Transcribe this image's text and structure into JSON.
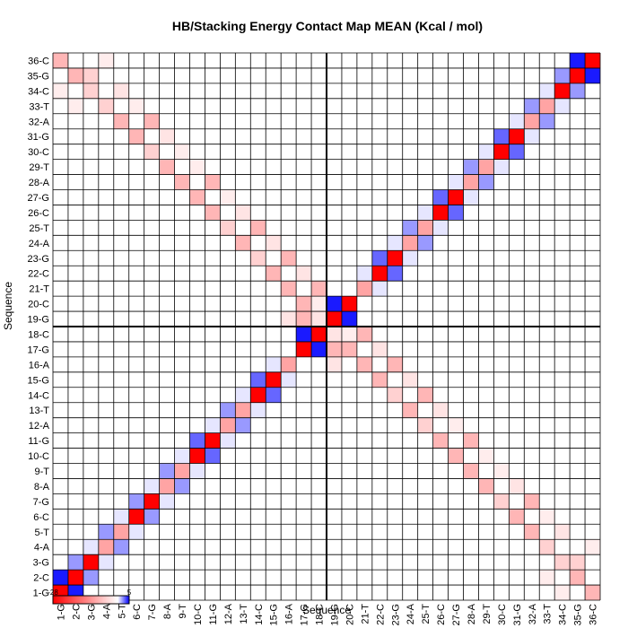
{
  "chart_data": {
    "type": "heatmap",
    "title": "HB/Stacking Energy Contact Map MEAN (Kcal / mol)",
    "xlabel": "Sequence",
    "ylabel": "Sequence",
    "labels": [
      "1-G",
      "2-C",
      "3-G",
      "4-A",
      "5-T",
      "6-C",
      "7-G",
      "8-A",
      "9-T",
      "10-C",
      "11-G",
      "12-A",
      "13-T",
      "14-C",
      "15-G",
      "16-A",
      "17-G",
      "18-C",
      "19-G",
      "20-C",
      "21-T",
      "22-C",
      "23-G",
      "24-A",
      "25-T",
      "26-C",
      "27-G",
      "28-A",
      "29-T",
      "30-C",
      "31-G",
      "32-A",
      "33-T",
      "34-C",
      "35-G",
      "36-C"
    ],
    "colorbar": {
      "min_label": "-28",
      "max_label": "5",
      "range": [
        -28,
        5
      ],
      "colors": {
        "low": "#ff0000",
        "mid": "#ffffff",
        "high": "#0000ff"
      }
    },
    "reference_lines_after_index": 18,
    "grid": true,
    "values": [
      [
        -28,
        4.5,
        0,
        0,
        0,
        0,
        0,
        0,
        0,
        0,
        0,
        0,
        0,
        0,
        0,
        0,
        0,
        0,
        0,
        0,
        0,
        0,
        0,
        0,
        0,
        0,
        0,
        0,
        0,
        0,
        0,
        0,
        0,
        0,
        0,
        0
      ],
      [
        4.5,
        -28,
        2,
        0,
        0,
        0,
        0,
        0,
        0,
        0,
        0,
        0,
        0,
        0,
        0,
        0,
        0,
        0,
        0,
        0,
        0,
        0,
        0,
        0,
        0,
        0,
        0,
        0,
        0,
        0,
        0,
        0,
        0,
        0,
        0,
        0
      ],
      [
        0,
        2,
        -28,
        0.5,
        0,
        0,
        0,
        0,
        0,
        0,
        0,
        0,
        0,
        0,
        0,
        0,
        0,
        0,
        0,
        0,
        0,
        0,
        0,
        0,
        0,
        0,
        0,
        0,
        0,
        0,
        0,
        0,
        0,
        0,
        0,
        0
      ],
      [
        0,
        0,
        0.5,
        -10,
        2,
        0,
        0,
        0,
        0,
        0,
        0,
        0,
        0,
        0,
        0,
        0,
        0,
        0,
        0,
        0,
        0,
        0,
        0,
        0,
        0,
        0,
        0,
        0,
        0,
        0,
        0,
        0,
        0,
        0,
        0,
        0
      ],
      [
        0,
        0,
        0,
        2,
        -10,
        0.5,
        0,
        0,
        0,
        0,
        0,
        0,
        0,
        0,
        0,
        0,
        0,
        0,
        0,
        0,
        0,
        0,
        0,
        0,
        0,
        0,
        0,
        0,
        0,
        0,
        0,
        0,
        0,
        0,
        0,
        0
      ],
      [
        0,
        0,
        0,
        0,
        0.5,
        -28,
        2,
        0,
        0,
        0,
        0,
        0,
        0,
        0,
        0,
        0,
        0,
        0,
        0,
        0,
        0,
        0,
        0,
        0,
        0,
        0,
        0,
        0,
        0,
        0,
        0,
        0,
        0,
        0,
        0,
        0
      ],
      [
        0,
        0,
        0,
        0,
        0,
        2,
        -28,
        0.5,
        0,
        0,
        0,
        0,
        0,
        0,
        0,
        0,
        0,
        0,
        0,
        0,
        0,
        0,
        0,
        0,
        0,
        0,
        0,
        0,
        0,
        0,
        0,
        0,
        0,
        0,
        0,
        0
      ],
      [
        0,
        0,
        0,
        0,
        0,
        0,
        0.5,
        -10,
        2,
        0,
        0,
        0,
        0,
        0,
        0,
        0,
        0,
        0,
        0,
        0,
        0,
        0,
        0,
        0,
        0,
        0,
        0,
        0,
        0,
        0,
        0,
        0,
        0,
        0,
        0,
        0
      ],
      [
        0,
        0,
        0,
        0,
        0,
        0,
        0,
        2,
        -10,
        0.5,
        0,
        0,
        0,
        0,
        0,
        0,
        0,
        0,
        0,
        0,
        0,
        0,
        0,
        0,
        0,
        0,
        0,
        0,
        0,
        0,
        0,
        0,
        0,
        0,
        0,
        0
      ],
      [
        0,
        0,
        0,
        0,
        0,
        0,
        0,
        0,
        0.5,
        -28,
        3,
        0,
        0,
        0,
        0,
        0,
        0,
        0,
        0,
        0,
        0,
        0,
        0,
        0,
        0,
        0,
        0,
        0,
        0,
        0,
        0,
        0,
        0,
        0,
        0,
        0
      ],
      [
        0,
        0,
        0,
        0,
        0,
        0,
        0,
        0,
        0,
        3,
        -28,
        0.5,
        0,
        0,
        0,
        0,
        0,
        0,
        0,
        0,
        0,
        0,
        0,
        0,
        0,
        0,
        0,
        0,
        0,
        0,
        0,
        0,
        0,
        0,
        0,
        0
      ],
      [
        0,
        0,
        0,
        0,
        0,
        0,
        0,
        0,
        0,
        0,
        0.5,
        -10,
        2,
        0,
        0,
        0,
        0,
        0,
        0,
        0,
        0,
        0,
        0,
        0,
        0,
        0,
        0,
        0,
        0,
        0,
        0,
        0,
        0,
        0,
        0,
        0
      ],
      [
        0,
        0,
        0,
        0,
        0,
        0,
        0,
        0,
        0,
        0,
        0,
        2,
        -10,
        0.5,
        0,
        0,
        0,
        0,
        0,
        0,
        0,
        0,
        0,
        0,
        0,
        0,
        0,
        0,
        0,
        0,
        0,
        0,
        0,
        0,
        0,
        0
      ],
      [
        0,
        0,
        0,
        0,
        0,
        0,
        0,
        0,
        0,
        0,
        0,
        0,
        0.5,
        -28,
        3,
        0,
        0,
        0,
        0,
        0,
        0,
        0,
        0,
        0,
        0,
        0,
        0,
        0,
        0,
        0,
        0,
        0,
        0,
        0,
        0,
        0
      ],
      [
        0,
        0,
        0,
        0,
        0,
        0,
        0,
        0,
        0,
        0,
        0,
        0,
        0,
        3,
        -28,
        0.5,
        0,
        0,
        0,
        0,
        0,
        0,
        0,
        0,
        0,
        0,
        0,
        0,
        0,
        0,
        0,
        0,
        0,
        0,
        0,
        0
      ],
      [
        0,
        0,
        0,
        0,
        0,
        0,
        0,
        0,
        0,
        0,
        0,
        0,
        0,
        0,
        0.5,
        -10,
        0,
        0,
        0,
        0,
        0,
        0,
        0,
        0,
        0,
        0,
        0,
        0,
        0,
        0,
        0,
        0,
        0,
        0,
        0,
        0
      ],
      [
        0,
        0,
        0,
        0,
        0,
        0,
        0,
        0,
        0,
        0,
        0,
        0,
        0,
        0,
        0,
        0,
        -28,
        4.5,
        0,
        0,
        0,
        0,
        0,
        0,
        0,
        0,
        0,
        0,
        0,
        0,
        0,
        0,
        0,
        0,
        0,
        0
      ],
      [
        0,
        0,
        0,
        0,
        0,
        0,
        0,
        0,
        0,
        0,
        0,
        0,
        0,
        0,
        0,
        0,
        4.5,
        -28,
        0,
        0,
        0,
        0,
        0,
        0,
        0,
        0,
        0,
        0,
        0,
        0,
        0,
        0,
        0,
        0,
        0,
        0
      ],
      [
        0,
        0,
        0,
        0,
        0,
        0,
        0,
        0,
        0,
        0,
        0,
        0,
        0,
        0,
        0,
        0,
        0,
        0,
        -28,
        4.5,
        0,
        0,
        0,
        0,
        0,
        0,
        0,
        0,
        0,
        0,
        0,
        0,
        0,
        0,
        0,
        0
      ],
      [
        0,
        0,
        0,
        0,
        0,
        0,
        0,
        0,
        0,
        0,
        0,
        0,
        0,
        0,
        0,
        0,
        0,
        0,
        4.5,
        -28,
        0,
        0,
        0,
        0,
        0,
        0,
        0,
        0,
        0,
        0,
        0,
        0,
        0,
        0,
        0,
        0
      ],
      [
        0,
        0,
        0,
        0,
        0,
        0,
        0,
        0,
        0,
        0,
        0,
        0,
        0,
        0,
        0,
        0,
        0,
        0,
        0,
        0,
        -10,
        0.5,
        0,
        0,
        0,
        0,
        0,
        0,
        0,
        0,
        0,
        0,
        0,
        0,
        0,
        0
      ],
      [
        0,
        0,
        0,
        0,
        0,
        0,
        0,
        0,
        0,
        0,
        0,
        0,
        0,
        0,
        0,
        0,
        0,
        0,
        0,
        0,
        0.5,
        -28,
        3,
        0,
        0,
        0,
        0,
        0,
        0,
        0,
        0,
        0,
        0,
        0,
        0,
        0
      ],
      [
        0,
        0,
        0,
        0,
        0,
        0,
        0,
        0,
        0,
        0,
        0,
        0,
        0,
        0,
        0,
        0,
        0,
        0,
        0,
        0,
        0,
        3,
        -28,
        0.5,
        0,
        0,
        0,
        0,
        0,
        0,
        0,
        0,
        0,
        0,
        0,
        0
      ],
      [
        0,
        0,
        0,
        0,
        0,
        0,
        0,
        0,
        0,
        0,
        0,
        0,
        0,
        0,
        0,
        0,
        0,
        0,
        0,
        0,
        0,
        0,
        0.5,
        -10,
        2,
        0,
        0,
        0,
        0,
        0,
        0,
        0,
        0,
        0,
        0,
        0
      ],
      [
        0,
        0,
        0,
        0,
        0,
        0,
        0,
        0,
        0,
        0,
        0,
        0,
        0,
        0,
        0,
        0,
        0,
        0,
        0,
        0,
        0,
        0,
        0,
        2,
        -10,
        0.5,
        0,
        0,
        0,
        0,
        0,
        0,
        0,
        0,
        0,
        0
      ],
      [
        0,
        0,
        0,
        0,
        0,
        0,
        0,
        0,
        0,
        0,
        0,
        0,
        0,
        0,
        0,
        0,
        0,
        0,
        0,
        0,
        0,
        0,
        0,
        0,
        0.5,
        -28,
        3,
        0,
        0,
        0,
        0,
        0,
        0,
        0,
        0,
        0
      ],
      [
        0,
        0,
        0,
        0,
        0,
        0,
        0,
        0,
        0,
        0,
        0,
        0,
        0,
        0,
        0,
        0,
        0,
        0,
        0,
        0,
        0,
        0,
        0,
        0,
        0,
        3,
        -28,
        0.5,
        0,
        0,
        0,
        0,
        0,
        0,
        0,
        0
      ],
      [
        0,
        0,
        0,
        0,
        0,
        0,
        0,
        0,
        0,
        0,
        0,
        0,
        0,
        0,
        0,
        0,
        0,
        0,
        0,
        0,
        0,
        0,
        0,
        0,
        0,
        0,
        0.5,
        -10,
        2,
        0,
        0,
        0,
        0,
        0,
        0,
        0
      ],
      [
        0,
        0,
        0,
        0,
        0,
        0,
        0,
        0,
        0,
        0,
        0,
        0,
        0,
        0,
        0,
        0,
        0,
        0,
        0,
        0,
        0,
        0,
        0,
        0,
        0,
        0,
        0,
        2,
        -10,
        0.5,
        0,
        0,
        0,
        0,
        0,
        0
      ],
      [
        0,
        0,
        0,
        0,
        0,
        0,
        0,
        0,
        0,
        0,
        0,
        0,
        0,
        0,
        0,
        0,
        0,
        0,
        0,
        0,
        0,
        0,
        0,
        0,
        0,
        0,
        0,
        0,
        0.5,
        -28,
        3,
        0,
        0,
        0,
        0,
        0
      ],
      [
        0,
        0,
        0,
        0,
        0,
        0,
        0,
        0,
        0,
        0,
        0,
        0,
        0,
        0,
        0,
        0,
        0,
        0,
        0,
        0,
        0,
        0,
        0,
        0,
        0,
        0,
        0,
        0,
        0,
        3,
        -28,
        0.5,
        0,
        0,
        0,
        0
      ],
      [
        0,
        0,
        0,
        0,
        0,
        0,
        0,
        0,
        0,
        0,
        0,
        0,
        0,
        0,
        0,
        0,
        0,
        0,
        0,
        0,
        0,
        0,
        0,
        0,
        0,
        0,
        0,
        0,
        0,
        0,
        0.5,
        -10,
        2,
        0,
        0,
        0
      ],
      [
        0,
        0,
        0,
        0,
        0,
        0,
        0,
        0,
        0,
        0,
        0,
        0,
        0,
        0,
        0,
        0,
        0,
        0,
        0,
        0,
        0,
        0,
        0,
        0,
        0,
        0,
        0,
        0,
        0,
        0,
        0,
        2,
        -10,
        0.5,
        0,
        0
      ],
      [
        0,
        0,
        0,
        0,
        0,
        0,
        0,
        0,
        0,
        0,
        0,
        0,
        0,
        0,
        0,
        0,
        0,
        0,
        0,
        0,
        0,
        0,
        0,
        0,
        0,
        0,
        0,
        0,
        0,
        0,
        0,
        0,
        0.5,
        -28,
        2,
        0
      ],
      [
        0,
        0,
        0,
        0,
        0,
        0,
        0,
        0,
        0,
        0,
        0,
        0,
        0,
        0,
        0,
        0,
        0,
        0,
        0,
        0,
        0,
        0,
        0,
        0,
        0,
        0,
        0,
        0,
        0,
        0,
        0,
        0,
        0,
        2,
        -28,
        4.5
      ],
      [
        0,
        0,
        0,
        0,
        0,
        0,
        0,
        0,
        0,
        0,
        0,
        0,
        0,
        0,
        0,
        0,
        0,
        0,
        0,
        0,
        0,
        0,
        0,
        0,
        0,
        0,
        0,
        0,
        0,
        0,
        0,
        0,
        0,
        0,
        4.5,
        -28
      ]
    ],
    "pairing_cells": [
      {
        "i": 1,
        "j": 36,
        "value": -8
      },
      {
        "i": 2,
        "j": 35,
        "value": -8
      },
      {
        "i": 3,
        "j": 34,
        "value": -5
      },
      {
        "i": 4,
        "j": 33,
        "value": -5
      },
      {
        "i": 5,
        "j": 32,
        "value": -8
      },
      {
        "i": 6,
        "j": 31,
        "value": -8
      },
      {
        "i": 7,
        "j": 30,
        "value": -5
      },
      {
        "i": 8,
        "j": 29,
        "value": -8
      },
      {
        "i": 9,
        "j": 28,
        "value": -8
      },
      {
        "i": 10,
        "j": 27,
        "value": -8
      },
      {
        "i": 11,
        "j": 26,
        "value": -8
      },
      {
        "i": 12,
        "j": 25,
        "value": -5
      },
      {
        "i": 13,
        "j": 24,
        "value": -8
      },
      {
        "i": 14,
        "j": 23,
        "value": -5
      },
      {
        "i": 15,
        "j": 22,
        "value": -8
      },
      {
        "i": 16,
        "j": 21,
        "value": -8
      },
      {
        "i": 17,
        "j": 20,
        "value": -8
      },
      {
        "i": 1,
        "j": 34,
        "value": -2
      },
      {
        "i": 2,
        "j": 33,
        "value": -2
      },
      {
        "i": 3,
        "j": 35,
        "value": -5
      },
      {
        "i": 4,
        "j": 36,
        "value": -2
      },
      {
        "i": 5,
        "j": 34,
        "value": -3
      },
      {
        "i": 6,
        "j": 33,
        "value": -2
      },
      {
        "i": 7,
        "j": 32,
        "value": -8
      },
      {
        "i": 8,
        "j": 31,
        "value": -3
      },
      {
        "i": 9,
        "j": 30,
        "value": -2
      },
      {
        "i": 10,
        "j": 29,
        "value": -2
      },
      {
        "i": 11,
        "j": 28,
        "value": -8
      },
      {
        "i": 12,
        "j": 27,
        "value": -2
      },
      {
        "i": 13,
        "j": 26,
        "value": -3
      },
      {
        "i": 14,
        "j": 25,
        "value": -8
      },
      {
        "i": 15,
        "j": 24,
        "value": -3
      },
      {
        "i": 16,
        "j": 23,
        "value": -8
      },
      {
        "i": 17,
        "j": 22,
        "value": -3
      },
      {
        "i": 18,
        "j": 21,
        "value": -8
      },
      {
        "i": 17,
        "j": 19,
        "value": -8
      },
      {
        "i": 18,
        "j": 19,
        "value": -3
      },
      {
        "i": 16,
        "j": 19,
        "value": -3
      },
      {
        "i": 18,
        "j": 17,
        "value": -2
      },
      {
        "i": 20,
        "j": 18,
        "value": -2
      }
    ]
  }
}
